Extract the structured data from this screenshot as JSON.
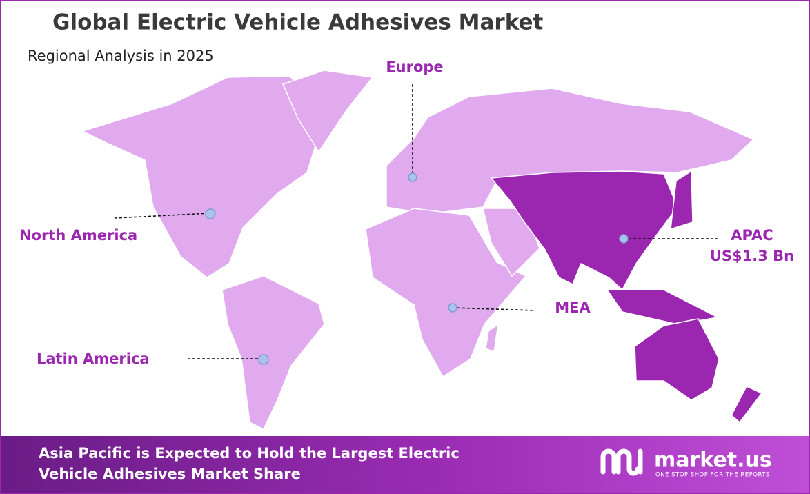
{
  "header": {
    "title": "Global Electric Vehicle Adhesives Market",
    "subtitle": "Regional Analysis in 2025"
  },
  "regions": [
    {
      "name": "Europe"
    },
    {
      "name": "North America"
    },
    {
      "name": "APAC",
      "value": "US$1.3 Bn"
    },
    {
      "name": "MEA"
    },
    {
      "name": "Latin America"
    }
  ],
  "footer": {
    "lines": [
      "Asia Pacific is Expected to Hold the Largest Electric",
      "Vehicle Adhesives Market Share"
    ],
    "brand": {
      "name": "market.us",
      "tagline": "ONE STOP SHOP FOR THE REPORTS"
    }
  }
}
